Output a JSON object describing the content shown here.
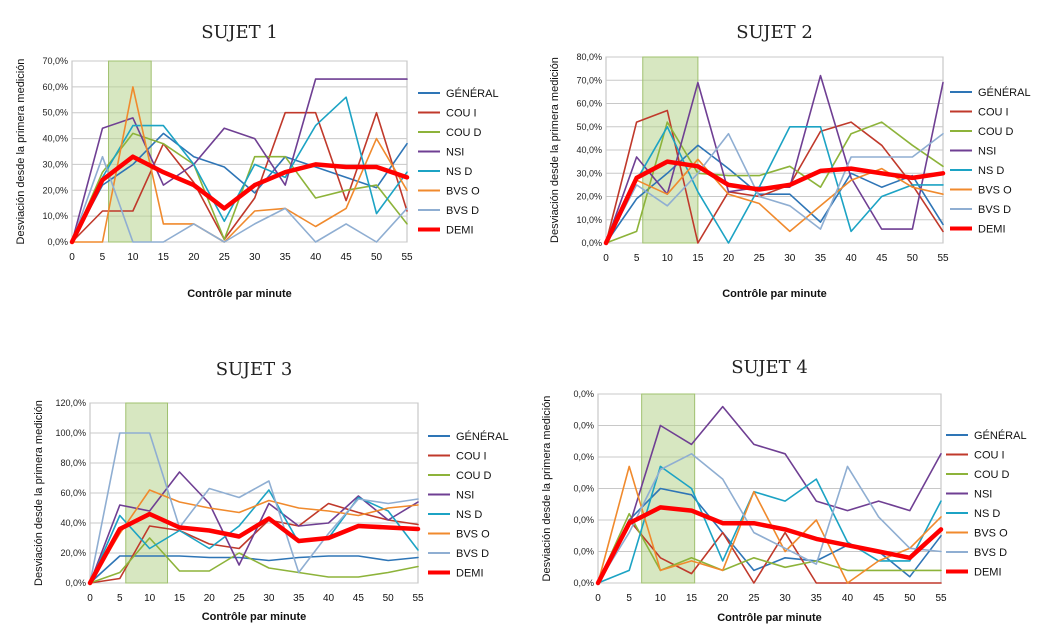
{
  "chart_data": [
    {
      "type": "line",
      "title": "SUJET 1",
      "xlabel": "Contrôle par minute",
      "ylabel": "Desviación desde la primera medición",
      "x": [
        0,
        5,
        10,
        15,
        20,
        25,
        30,
        35,
        40,
        45,
        50,
        55
      ],
      "ylim": [
        0,
        70
      ],
      "yticks": [
        "0,0%",
        "10,0%",
        "20,0%",
        "30,0%",
        "40,0%",
        "50,0%",
        "60,0%",
        "70,0%"
      ],
      "highlight_range": [
        6,
        13
      ],
      "grid": true,
      "legend": "right",
      "series": [
        {
          "name": "GÉNÉRAL",
          "color": "#2e75b6",
          "values": [
            0,
            22,
            30,
            42,
            33,
            29,
            19,
            33,
            29,
            25,
            21,
            38
          ]
        },
        {
          "name": "COU I",
          "color": "#c0392b",
          "values": [
            0,
            12,
            12,
            38,
            23,
            1,
            17,
            50,
            50,
            16,
            50,
            12
          ]
        },
        {
          "name": "COU D",
          "color": "#8db33a",
          "values": [
            0,
            27,
            42,
            38,
            30,
            1,
            33,
            33,
            17,
            20,
            22,
            7
          ]
        },
        {
          "name": "NSI",
          "color": "#6f3f93",
          "values": [
            0,
            44,
            48,
            22,
            30,
            44,
            40,
            22,
            63,
            63,
            63,
            63
          ]
        },
        {
          "name": "NS D",
          "color": "#1ca3c4",
          "values": [
            0,
            25,
            45,
            45,
            30,
            8,
            30,
            25,
            45,
            56,
            11,
            27
          ]
        },
        {
          "name": "BVS O",
          "color": "#f08a2d",
          "values": [
            0,
            0,
            60,
            7,
            7,
            0,
            12,
            13,
            6,
            13,
            40,
            20
          ]
        },
        {
          "name": "BVS D",
          "color": "#8faed2",
          "values": [
            0,
            33,
            0,
            0,
            7,
            0,
            7,
            13,
            0,
            7,
            0,
            13
          ]
        },
        {
          "name": "DEMI",
          "color": "#ff0000",
          "values": [
            0,
            24,
            33,
            27,
            22,
            13,
            22,
            27,
            30,
            29,
            29,
            25
          ]
        }
      ]
    },
    {
      "type": "line",
      "title": "SUJET 2",
      "xlabel": "Contrôle par minute",
      "ylabel": "Desviación desde la primera medición",
      "x": [
        0,
        5,
        10,
        15,
        20,
        25,
        30,
        35,
        40,
        45,
        50,
        55
      ],
      "ylim": [
        0,
        80
      ],
      "yticks": [
        "0,0%",
        "10,0%",
        "20,0%",
        "30,0%",
        "40,0%",
        "50,0%",
        "60,0%",
        "70,0%",
        "80,0%"
      ],
      "highlight_range": [
        6,
        15
      ],
      "grid": true,
      "legend": "right",
      "series": [
        {
          "name": "GÉNÉRAL",
          "color": "#2e75b6",
          "values": [
            0,
            19,
            30,
            42,
            32,
            21,
            21,
            9,
            30,
            24,
            29,
            8
          ]
        },
        {
          "name": "COU I",
          "color": "#c0392b",
          "values": [
            0,
            52,
            57,
            0,
            22,
            20,
            25,
            48,
            52,
            42,
            25,
            5
          ]
        },
        {
          "name": "COU D",
          "color": "#8db33a",
          "values": [
            0,
            5,
            52,
            30,
            29,
            29,
            33,
            24,
            47,
            52,
            42,
            33
          ]
        },
        {
          "name": "NSI",
          "color": "#6f3f93",
          "values": [
            0,
            37,
            21,
            69,
            22,
            24,
            24,
            72,
            28,
            6,
            6,
            69
          ]
        },
        {
          "name": "NS D",
          "color": "#1ca3c4",
          "values": [
            0,
            27,
            50,
            22,
            0,
            24,
            50,
            50,
            5,
            20,
            25,
            25
          ]
        },
        {
          "name": "BVS O",
          "color": "#f08a2d",
          "values": [
            0,
            27,
            21,
            36,
            21,
            17,
            5,
            16,
            27,
            32,
            24,
            21
          ]
        },
        {
          "name": "BVS D",
          "color": "#8faed2",
          "values": [
            0,
            25,
            16,
            30,
            47,
            20,
            16,
            6,
            37,
            37,
            37,
            47
          ]
        },
        {
          "name": "DEMI",
          "color": "#ff0000",
          "values": [
            0,
            28,
            35,
            33,
            25,
            23,
            25,
            31,
            32,
            30,
            28,
            30
          ]
        }
      ]
    },
    {
      "type": "line",
      "title": "SUJET 3",
      "xlabel": "Contrôle par minute",
      "ylabel": "Desviación desde la primera medición",
      "x": [
        0,
        5,
        10,
        15,
        20,
        25,
        30,
        35,
        40,
        45,
        50,
        55
      ],
      "ylim": [
        0,
        120
      ],
      "yticks": [
        "0,0%",
        "20,0%",
        "40,0%",
        "60,0%",
        "80,0%",
        "100,0%",
        "120,0%"
      ],
      "highlight_range": [
        6,
        13
      ],
      "grid": true,
      "legend": "right",
      "series": [
        {
          "name": "GÉNÉRAL",
          "color": "#2e75b6",
          "values": [
            0,
            18,
            18,
            18,
            17,
            17,
            15,
            17,
            18,
            18,
            15,
            17
          ]
        },
        {
          "name": "COU I",
          "color": "#c0392b",
          "values": [
            0,
            3,
            38,
            35,
            26,
            23,
            42,
            38,
            53,
            47,
            42,
            39
          ]
        },
        {
          "name": "COU D",
          "color": "#8db33a",
          "values": [
            0,
            7,
            30,
            8,
            8,
            20,
            10,
            7,
            4,
            4,
            7,
            11
          ]
        },
        {
          "name": "NSI",
          "color": "#6f3f93",
          "values": [
            0,
            52,
            48,
            74,
            53,
            12,
            53,
            38,
            40,
            58,
            42,
            54
          ]
        },
        {
          "name": "NS D",
          "color": "#1ca3c4",
          "values": [
            0,
            45,
            23,
            35,
            23,
            38,
            62,
            27,
            30,
            57,
            48,
            22
          ]
        },
        {
          "name": "BVS O",
          "color": "#f08a2d",
          "values": [
            0,
            33,
            62,
            54,
            50,
            47,
            55,
            50,
            48,
            45,
            50,
            52
          ]
        },
        {
          "name": "BVS D",
          "color": "#8faed2",
          "values": [
            0,
            100,
            100,
            37,
            63,
            57,
            68,
            7,
            33,
            56,
            53,
            56
          ]
        },
        {
          "name": "DEMI",
          "color": "#ff0000",
          "values": [
            0,
            36,
            46,
            37,
            35,
            31,
            43,
            28,
            30,
            38,
            37,
            36
          ]
        }
      ]
    },
    {
      "type": "line",
      "title": "SUJET 4",
      "xlabel": "Contrôle par minute",
      "ylabel": "Desviación desde la primera medición",
      "x": [
        0,
        5,
        10,
        15,
        20,
        25,
        30,
        35,
        40,
        45,
        50,
        55
      ],
      "ylim": [
        0,
        60
      ],
      "yticks": [
        "0,0%",
        "0,0%",
        "0,0%",
        "0,0%",
        "0,0%",
        "0,0%",
        "0,0%"
      ],
      "highlight_range": [
        7,
        15.5
      ],
      "grid": true,
      "legend": "right",
      "series": [
        {
          "name": "GÉNÉRAL",
          "color": "#2e75b6",
          "values": [
            0,
            20,
            30,
            28,
            16,
            4,
            8,
            7,
            12,
            10,
            2,
            15
          ]
        },
        {
          "name": "COU I",
          "color": "#c0392b",
          "values": [
            0,
            20,
            8,
            3,
            16,
            0,
            16,
            0,
            0,
            0,
            0,
            0
          ]
        },
        {
          "name": "COU D",
          "color": "#8db33a",
          "values": [
            0,
            22,
            4,
            8,
            4,
            8,
            5,
            7,
            4,
            4,
            4,
            4
          ]
        },
        {
          "name": "NSI",
          "color": "#6f3f93",
          "values": [
            0,
            18,
            50,
            44,
            56,
            44,
            41,
            26,
            23,
            26,
            23,
            41
          ]
        },
        {
          "name": "NS D",
          "color": "#1ca3c4",
          "values": [
            0,
            4,
            37,
            30,
            7,
            29,
            26,
            33,
            13,
            7,
            7,
            26
          ]
        },
        {
          "name": "BVS O",
          "color": "#f08a2d",
          "values": [
            0,
            37,
            4,
            7,
            4,
            29,
            10,
            20,
            0,
            7,
            11,
            21
          ]
        },
        {
          "name": "BVS D",
          "color": "#8faed2",
          "values": [
            0,
            16,
            36,
            41,
            33,
            16,
            11,
            6,
            37,
            21,
            11,
            10
          ]
        },
        {
          "name": "DEMI",
          "color": "#ff0000",
          "values": [
            0,
            19,
            24,
            23,
            19,
            19,
            17,
            14,
            12,
            10,
            8,
            17
          ]
        }
      ]
    }
  ]
}
